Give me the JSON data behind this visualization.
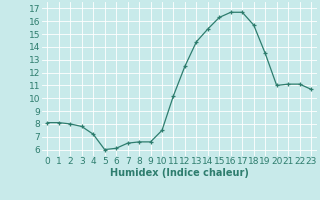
{
  "x": [
    0,
    1,
    2,
    3,
    4,
    5,
    6,
    7,
    8,
    9,
    10,
    11,
    12,
    13,
    14,
    15,
    16,
    17,
    18,
    19,
    20,
    21,
    22,
    23
  ],
  "y": [
    8.1,
    8.1,
    8.0,
    7.8,
    7.2,
    6.0,
    6.1,
    6.5,
    6.6,
    6.6,
    7.5,
    10.2,
    12.5,
    14.4,
    15.4,
    16.3,
    16.7,
    16.7,
    15.7,
    13.5,
    11.0,
    11.1,
    11.1,
    10.7
  ],
  "xlabel": "Humidex (Indice chaleur)",
  "xlim": [
    -0.5,
    23.5
  ],
  "ylim": [
    5.5,
    17.5
  ],
  "yticks": [
    6,
    7,
    8,
    9,
    10,
    11,
    12,
    13,
    14,
    15,
    16,
    17
  ],
  "xticks": [
    0,
    1,
    2,
    3,
    4,
    5,
    6,
    7,
    8,
    9,
    10,
    11,
    12,
    13,
    14,
    15,
    16,
    17,
    18,
    19,
    20,
    21,
    22,
    23
  ],
  "line_color": "#2e7d6e",
  "bg_color": "#c8eaea",
  "grid_color": "#b0d8d8",
  "label_fontsize": 7,
  "tick_fontsize": 6.5
}
